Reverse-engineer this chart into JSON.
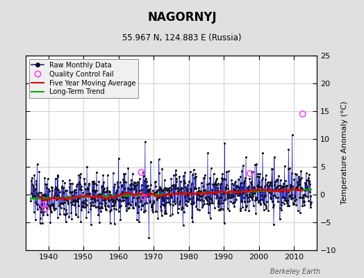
{
  "title": "NAGORNYJ",
  "subtitle": "55.967 N, 124.883 E (Russia)",
  "ylabel": "Temperature Anomaly (°C)",
  "watermark": "Berkeley Earth",
  "xlim": [
    1933.5,
    2016.5
  ],
  "ylim": [
    -10,
    25
  ],
  "yticks": [
    -10,
    -5,
    0,
    5,
    10,
    15,
    20,
    25
  ],
  "xticks": [
    1940,
    1950,
    1960,
    1970,
    1980,
    1990,
    2000,
    2010
  ],
  "bg_color": "#e0e0e0",
  "plot_bg_color": "#ffffff",
  "raw_line_color": "#2222bb",
  "raw_dot_color": "#111111",
  "moving_avg_color": "#dd0000",
  "trend_color": "#00aa00",
  "qc_fail_color": "#ff44ff",
  "qc_fail_points": [
    [
      1938.5,
      -1.8
    ],
    [
      1939.2,
      -2.5
    ],
    [
      1966.5,
      4.0
    ],
    [
      1967.3,
      -0.5
    ],
    [
      1997.5,
      3.8
    ],
    [
      2012.5,
      14.5
    ]
  ],
  "seed": 12345,
  "start_year": 1935.0,
  "end_year": 2015.0,
  "noise_std": 1.9,
  "trend_slope": 0.018
}
